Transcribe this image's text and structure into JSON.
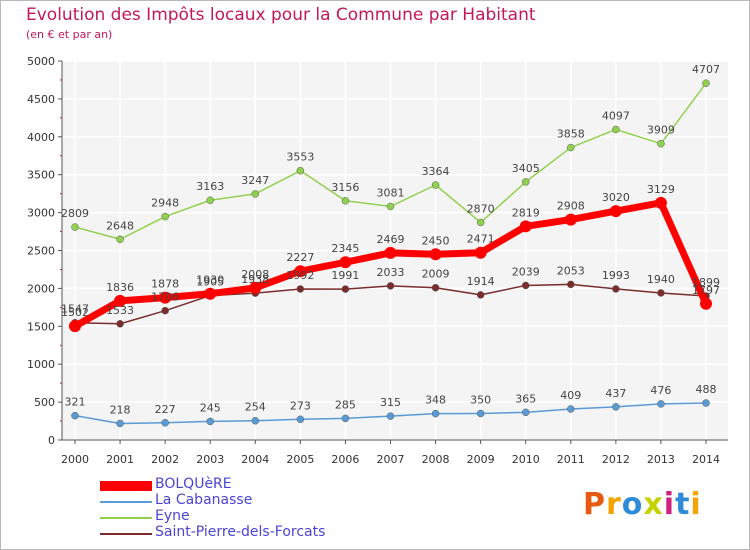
{
  "title": "Evolution des Impôts locaux pour la Commune par Habitant",
  "subtitle": "(en € et par an)",
  "logo_text": "Proxiti",
  "chart_data": {
    "type": "line",
    "title": "Evolution des Impôts locaux pour la Commune par Habitant",
    "subtitle": "(en € et par an)",
    "xlabel": "",
    "ylabel": "",
    "x": [
      "2000",
      "2001",
      "2002",
      "2003",
      "2004",
      "2005",
      "2006",
      "2007",
      "2008",
      "2009",
      "2010",
      "2011",
      "2012",
      "2013",
      "2014"
    ],
    "ylim": [
      0,
      5000
    ],
    "yticks": [
      0,
      500,
      1000,
      1500,
      2000,
      2500,
      3000,
      3500,
      4000,
      4500,
      5000
    ],
    "grid": true,
    "legend_position": "bottom-left",
    "series": [
      {
        "name": "BOLQUèRE",
        "color": "#ff0000",
        "values": [
          1502,
          1836,
          1878,
          1930,
          2008,
          2227,
          2345,
          2469,
          2450,
          2471,
          2819,
          2908,
          3020,
          3129,
          1797
        ]
      },
      {
        "name": "La Cabanasse",
        "color": "#5b9bd5",
        "values": [
          321,
          218,
          227,
          245,
          254,
          273,
          285,
          315,
          348,
          350,
          365,
          409,
          437,
          476,
          488
        ]
      },
      {
        "name": "Eyne",
        "color": "#92d050",
        "values": [
          2809,
          2648,
          2948,
          3163,
          3247,
          3553,
          3156,
          3081,
          3364,
          2870,
          3405,
          3858,
          4097,
          3909,
          4707
        ]
      },
      {
        "name": "Saint-Pierre-dels-Forcats",
        "color": "#7b2c2c",
        "values": [
          1547,
          1533,
          1706,
          1905,
          1938,
          1992,
          1991,
          2033,
          2009,
          1914,
          2039,
          2053,
          1993,
          1940,
          1899
        ]
      }
    ]
  }
}
